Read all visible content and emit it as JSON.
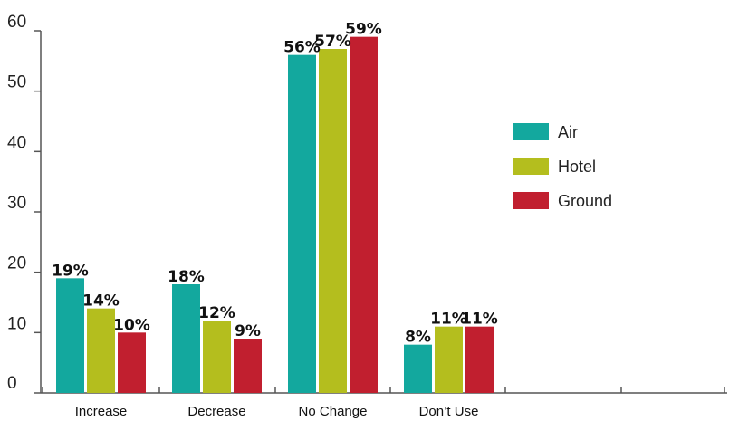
{
  "chart_data": {
    "type": "bar",
    "title": "",
    "xlabel": "",
    "ylabel": "",
    "categories": [
      "Increase",
      "Decrease",
      "No Change",
      "Don’t Use"
    ],
    "series": [
      {
        "name": "Air",
        "color": "#13a89e",
        "values": [
          19,
          18,
          56,
          8
        ],
        "labels": [
          "19%",
          "18%",
          "56%",
          "8%"
        ]
      },
      {
        "name": "Hotel",
        "color": "#b4be1e",
        "values": [
          14,
          12,
          57,
          11
        ],
        "labels": [
          "14%",
          "12%",
          "57%",
          "11%"
        ]
      },
      {
        "name": "Ground",
        "color": "#c11f2f",
        "values": [
          10,
          9,
          59,
          11
        ],
        "labels": [
          "10%",
          "9%",
          "59%",
          "11%"
        ]
      }
    ],
    "ylim": [
      0,
      60
    ],
    "yticks": [
      0,
      10,
      20,
      30,
      40,
      50,
      60
    ],
    "grid": false,
    "legend_position": "right"
  }
}
